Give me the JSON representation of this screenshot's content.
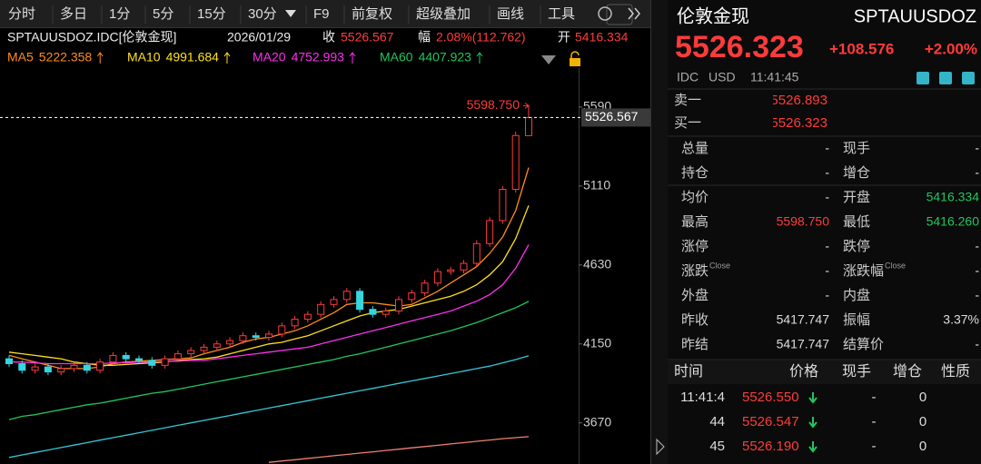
{
  "toolbar": [
    "分时",
    "多日",
    "1分",
    "5分",
    "15分",
    "30分",
    "F9",
    "前复权",
    "超级叠加",
    "画线",
    "工具"
  ],
  "header": {
    "symbol": "SPTAUUSDOZ.IDC[伦敦金现]",
    "date": "2026/01/29",
    "close_label": "收",
    "close": "5526.567",
    "range_label": "幅",
    "range": "2.08%(112.762)",
    "open_label": "开",
    "open": "5416.334"
  },
  "chart_data": {
    "type": "candlestick",
    "open": [
      4060,
      4030,
      3990,
      4010,
      3980,
      4000,
      4020,
      3990,
      4040,
      4080,
      4060,
      4050,
      4020,
      4060,
      4090,
      4110,
      4130,
      4150,
      4170,
      4200,
      4190,
      4210,
      4260,
      4300,
      4330,
      4390,
      4420,
      4470,
      4360,
      4330,
      4350,
      4420,
      4460,
      4520,
      4590,
      4600,
      4640,
      4760,
      4900,
      5090,
      5416.334
    ],
    "high": [
      4080,
      4050,
      4030,
      4030,
      4020,
      4040,
      4040,
      4060,
      4100,
      4100,
      4080,
      4070,
      4080,
      4110,
      4130,
      4150,
      4170,
      4190,
      4220,
      4220,
      4230,
      4280,
      4320,
      4350,
      4410,
      4440,
      4490,
      4490,
      4380,
      4370,
      4440,
      4480,
      4540,
      4610,
      4620,
      4660,
      4780,
      4920,
      5110,
      5440,
      5598.75
    ],
    "low": [
      4010,
      3970,
      3970,
      3960,
      3960,
      3980,
      3970,
      3970,
      4020,
      4040,
      4030,
      4000,
      4000,
      4040,
      4070,
      4090,
      4110,
      4130,
      4150,
      4170,
      4170,
      4190,
      4240,
      4280,
      4310,
      4370,
      4400,
      4340,
      4310,
      4310,
      4330,
      4400,
      4440,
      4500,
      4570,
      4580,
      4620,
      4740,
      4880,
      5070,
      5416.26
    ],
    "close": [
      4030,
      3990,
      4010,
      3980,
      4000,
      4020,
      3990,
      4040,
      4080,
      4060,
      4050,
      4020,
      4060,
      4090,
      4110,
      4130,
      4150,
      4170,
      4200,
      4190,
      4210,
      4260,
      4300,
      4330,
      4390,
      4420,
      4470,
      4360,
      4330,
      4350,
      4420,
      4460,
      4520,
      4590,
      4600,
      4640,
      4760,
      4900,
      5090,
      5417,
      5526.323
    ],
    "up_color": "#ff3b3b",
    "down_color": "#35d6e0",
    "series": [
      {
        "name": "MA5",
        "legend_value": "5222.358",
        "color": "#ff8c1a",
        "values": [
          4080,
          4060,
          4040,
          4020,
          4000,
          4000,
          4000,
          4010,
          4030,
          4040,
          4045,
          4050,
          4055,
          4060,
          4065,
          4090,
          4110,
          4130,
          4160,
          4180,
          4190,
          4210,
          4230,
          4260,
          4300,
          4340,
          4390,
          4400,
          4400,
          4390,
          4380,
          4390,
          4430,
          4470,
          4520,
          4570,
          4620,
          4700,
          4800,
          4960,
          5222
        ]
      },
      {
        "name": "MA10",
        "legend_value": "4991.684",
        "color": "#ffe01a",
        "values": [
          4100,
          4090,
          4080,
          4070,
          4060,
          4040,
          4030,
          4020,
          4020,
          4025,
          4030,
          4035,
          4040,
          4050,
          4055,
          4060,
          4070,
          4090,
          4110,
          4130,
          4150,
          4160,
          4180,
          4200,
          4230,
          4260,
          4290,
          4320,
          4340,
          4350,
          4360,
          4380,
          4400,
          4420,
          4440,
          4470,
          4510,
          4570,
          4650,
          4790,
          4992
        ]
      },
      {
        "name": "MA20",
        "legend_value": "4752.993",
        "color": "#ff2ef0",
        "values": [
          4040,
          4040,
          4035,
          4030,
          4030,
          4030,
          4030,
          4030,
          4035,
          4035,
          4040,
          4040,
          4045,
          4045,
          4050,
          4050,
          4060,
          4070,
          4080,
          4090,
          4100,
          4110,
          4120,
          4130,
          4150,
          4170,
          4190,
          4210,
          4230,
          4250,
          4270,
          4290,
          4310,
          4330,
          4350,
          4380,
          4410,
          4450,
          4510,
          4610,
          4753
        ]
      },
      {
        "name": "MA60",
        "legend_value": "4407.923",
        "color": "#22c55e",
        "values": [
          3690,
          3710,
          3720,
          3735,
          3750,
          3765,
          3780,
          3790,
          3805,
          3820,
          3835,
          3850,
          3860,
          3875,
          3890,
          3905,
          3920,
          3935,
          3950,
          3965,
          3980,
          3995,
          4010,
          4025,
          4040,
          4055,
          4075,
          4090,
          4110,
          4130,
          4150,
          4170,
          4190,
          4210,
          4230,
          4255,
          4280,
          4310,
          4340,
          4370,
          4408
        ]
      },
      {
        "color": "#35c6d6",
        "values": [
          3460,
          3475,
          3490,
          3505,
          3520,
          3535,
          3550,
          3565,
          3580,
          3595,
          3610,
          3625,
          3640,
          3655,
          3670,
          3685,
          3700,
          3715,
          3730,
          3745,
          3760,
          3775,
          3790,
          3805,
          3820,
          3835,
          3850,
          3865,
          3880,
          3895,
          3910,
          3925,
          3940,
          3955,
          3970,
          3985,
          4000,
          4015,
          4035,
          4055,
          4078
        ]
      },
      {
        "color": "#f08070",
        "values": [
          null,
          null,
          null,
          null,
          null,
          null,
          null,
          null,
          null,
          null,
          null,
          null,
          null,
          null,
          null,
          null,
          null,
          null,
          null,
          null,
          3430,
          3438,
          3446,
          3454,
          3462,
          3470,
          3478,
          3486,
          3494,
          3502,
          3510,
          3518,
          3526,
          3534,
          3542,
          3550,
          3558,
          3566,
          3574,
          3580,
          3586
        ]
      }
    ],
    "ylim": [
      3420,
      5827
    ],
    "yticks": [
      3670,
      4150,
      4630,
      5110,
      5590
    ],
    "grid": false,
    "high_marker": {
      "value": 5598.75,
      "label": "5598.750"
    },
    "current_price": {
      "value": 5526.567,
      "label": "5526.567"
    }
  },
  "quote": {
    "name": "伦敦金现",
    "code": "SPTAUUSDOZ",
    "price": "5526.323",
    "change": "+108.576",
    "change_pct": "+2.00%",
    "source": "IDC",
    "currency": "USD",
    "time": "11:41:45"
  },
  "order_book": [
    [
      "卖一",
      "5526.893"
    ],
    [
      "买一",
      "5526.323"
    ]
  ],
  "stats": [
    [
      {
        "label": "总量",
        "value": "-"
      },
      {
        "label": "现手",
        "value": "-"
      }
    ],
    [
      {
        "label": "持仓",
        "value": "-"
      },
      {
        "label": "增仓",
        "value": "-"
      }
    ],
    [
      {
        "label": "均价",
        "value": "-"
      },
      {
        "label": "开盘",
        "value": "5416.334"
      }
    ],
    [
      {
        "label": "最高",
        "value": "5598.750"
      },
      {
        "label": "最低",
        "value": "5416.260"
      }
    ],
    [
      {
        "label": "涨停",
        "value": "-"
      },
      {
        "label": "跌停",
        "value": "-"
      }
    ],
    [
      {
        "label": "涨跌",
        "sup": "Close",
        "value": "-"
      },
      {
        "label": "涨跌幅",
        "sup": "Close",
        "value": "-"
      }
    ],
    [
      {
        "label": "外盘",
        "value": "-"
      },
      {
        "label": "内盘",
        "value": "-"
      }
    ],
    [
      {
        "label": "昨收",
        "value": "5417.747"
      },
      {
        "label": "振幅",
        "value": "3.37%"
      }
    ],
    [
      {
        "label": "昨结",
        "value": "5417.747"
      },
      {
        "label": "结算价",
        "value": "-"
      }
    ]
  ],
  "trades": {
    "columns": [
      "时间",
      "价格",
      "现手",
      "增仓",
      "性质"
    ],
    "rows": [
      [
        "11:41:4",
        "5526.550",
        "-",
        "0"
      ],
      [
        "44",
        "5526.547",
        "-",
        "0"
      ],
      [
        "45",
        "5526.190",
        "-",
        "0"
      ]
    ]
  }
}
